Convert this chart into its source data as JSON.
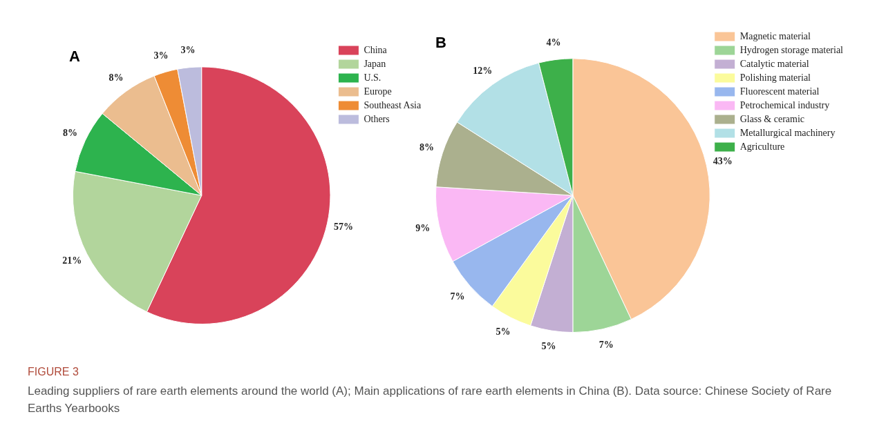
{
  "chart_data": [
    {
      "type": "pie",
      "title": "A",
      "categories": [
        "China",
        "Japan",
        "U.S.",
        "Europe",
        "Southeast Asia",
        "Others"
      ],
      "values": [
        57,
        21,
        8,
        8,
        3,
        3
      ],
      "value_labels": [
        "57%",
        "21%",
        "8%",
        "8%",
        "3%",
        "3%"
      ],
      "colors": [
        "#d9435a",
        "#b2d59c",
        "#2db34e",
        "#ebbd8f",
        "#ee8c35",
        "#bcbcdd"
      ],
      "legend": "top right"
    },
    {
      "type": "pie",
      "title": "B",
      "categories": [
        "Magnetic material",
        "Hydrogen storage material",
        "Catalytic material",
        "Polishing material",
        "Fluorescent material",
        "Petrochemical industry",
        "Glass & ceramic",
        "Metallurgical machinery",
        "Agriculture"
      ],
      "values": [
        43,
        7,
        5,
        5,
        7,
        9,
        8,
        12,
        4
      ],
      "value_labels": [
        "43%",
        "7%",
        "5%",
        "5%",
        "7%",
        "9%",
        "8%",
        "12%",
        "4%"
      ],
      "colors": [
        "#fac597",
        "#9dd597",
        "#c3afd3",
        "#fbfb9c",
        "#98b7ee",
        "#fab8f4",
        "#abb08e",
        "#b2e0e6",
        "#3db04a"
      ],
      "legend": "top right"
    },
    {
      "type": "other",
      "annotations": [
        "FIGURE 3",
        "Leading suppliers of rare earth elements around the world (A); Main applications of rare earth elements in China (B). Data source: Chinese Society of Rare Earths Yearbooks"
      ]
    }
  ]
}
